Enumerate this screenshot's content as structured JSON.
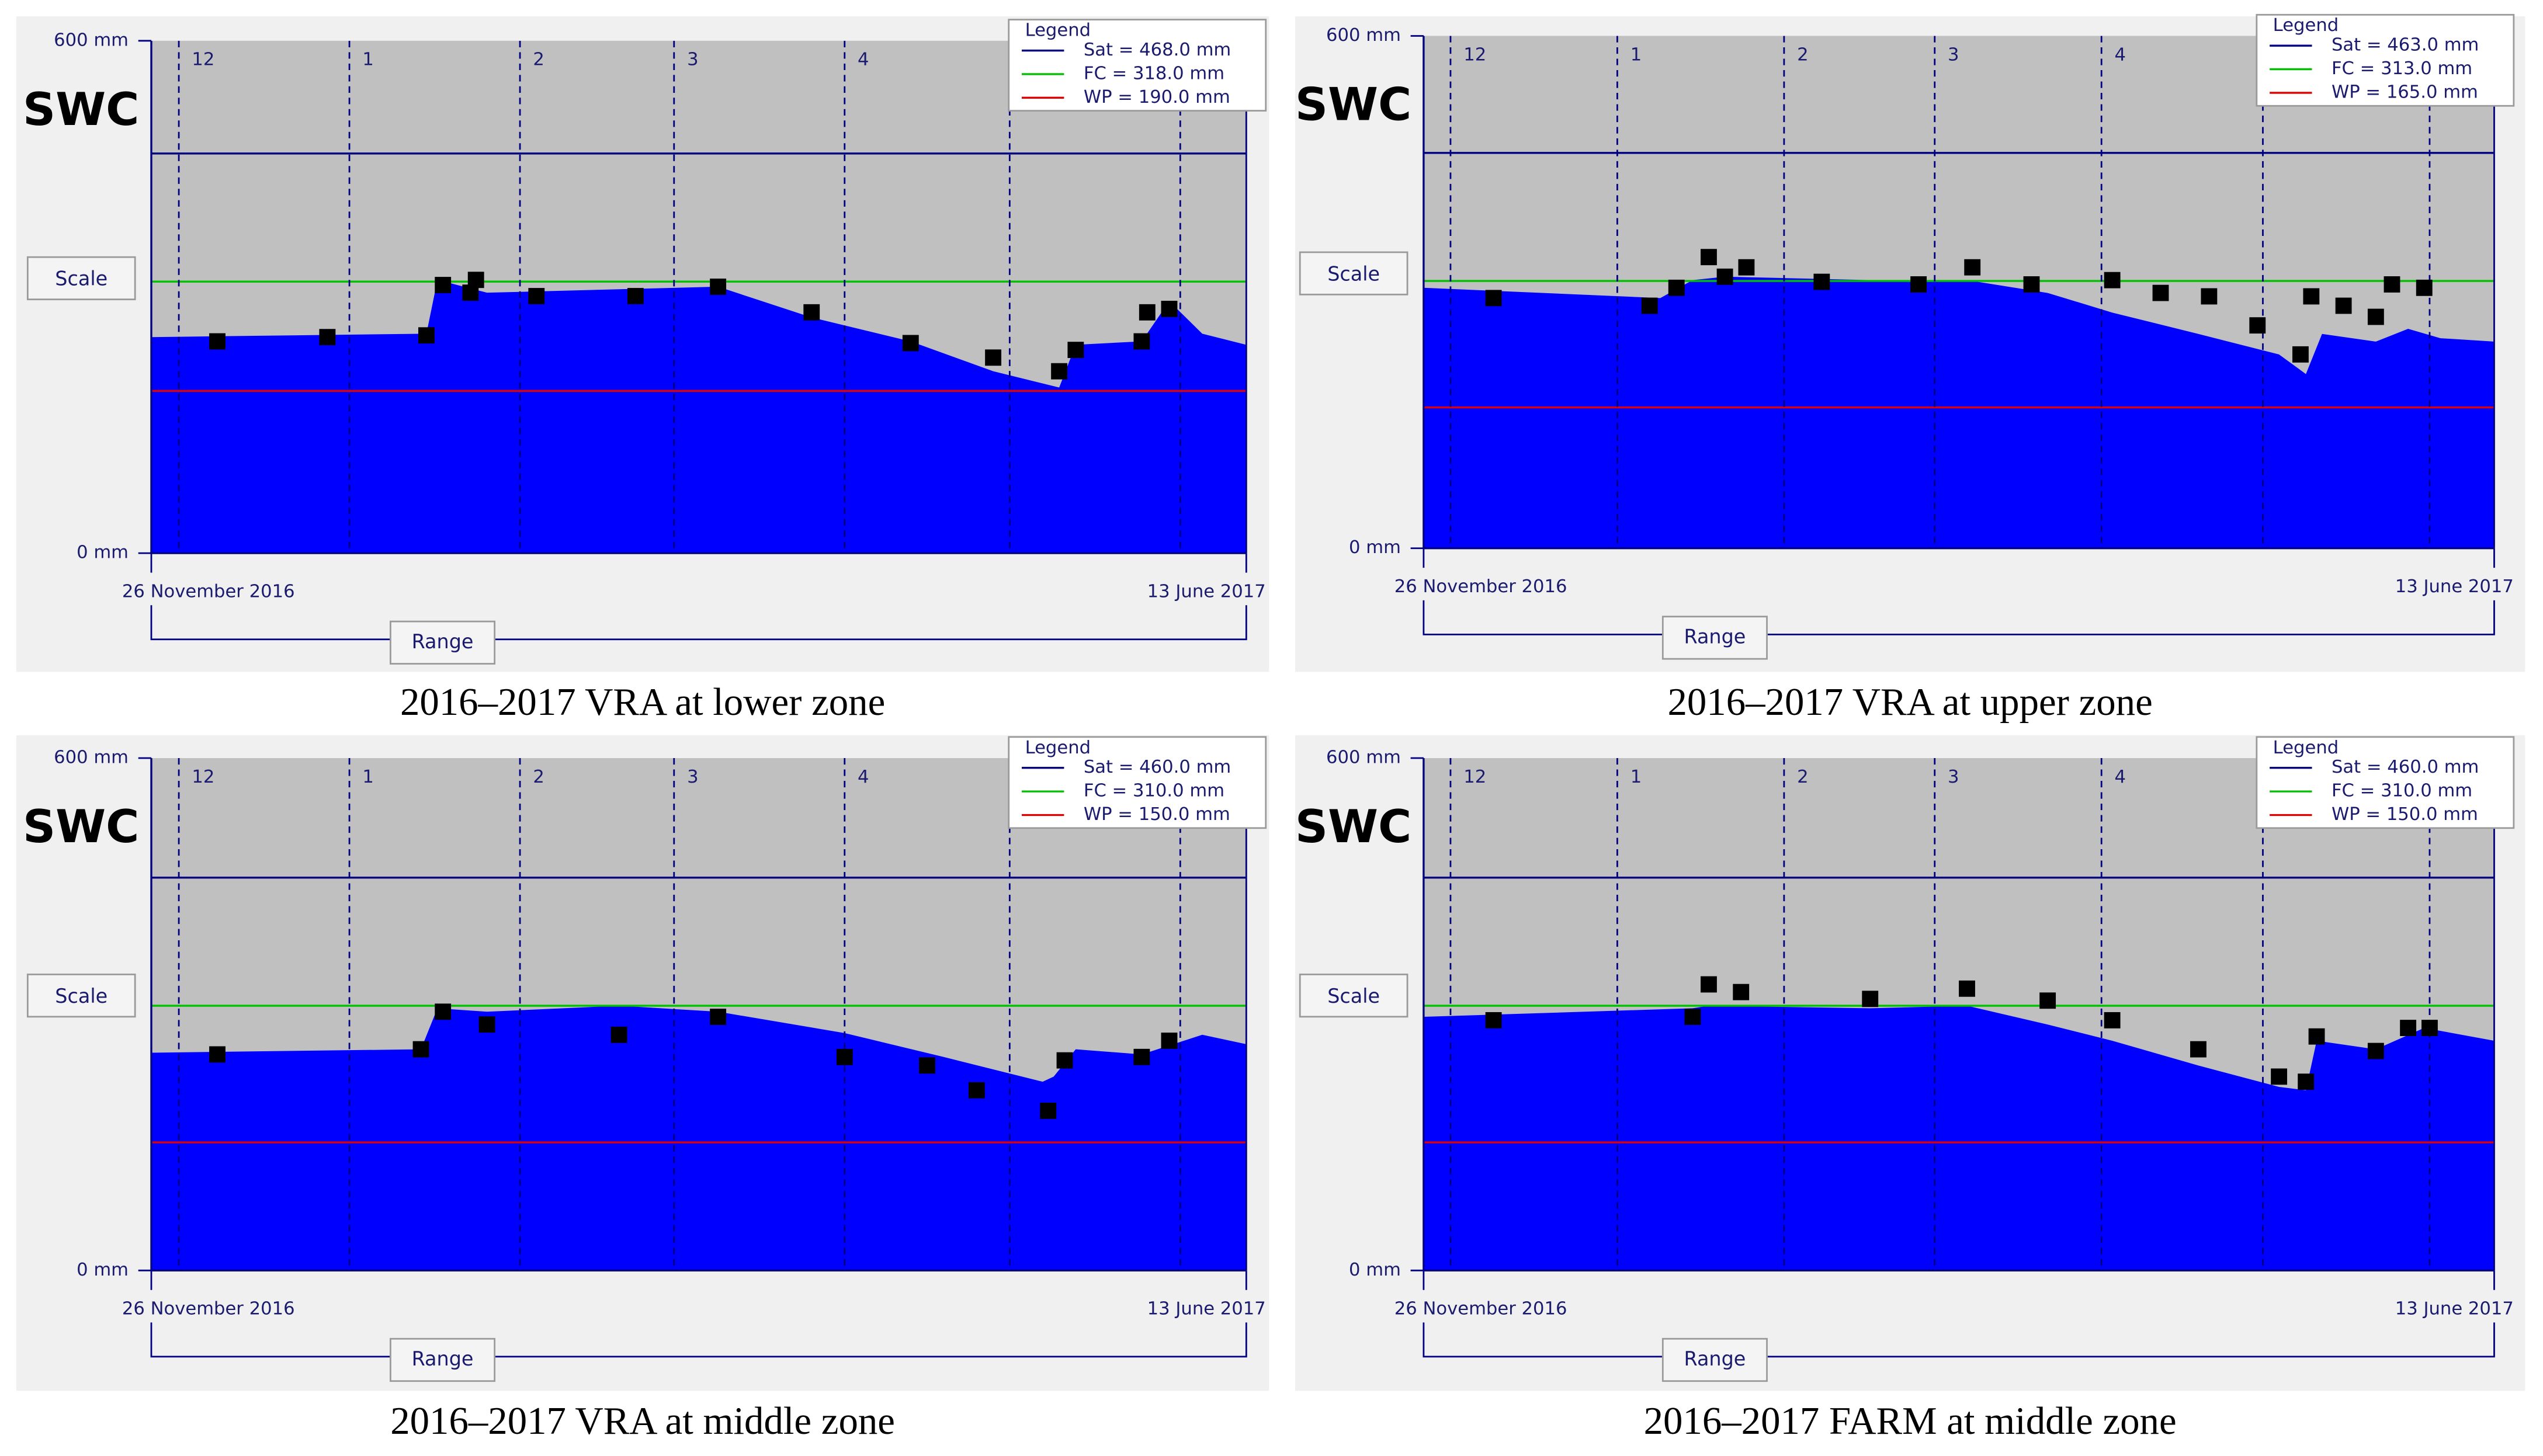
{
  "chart_data": [
    {
      "type": "area",
      "title": "SWC",
      "scale_button": "Scale",
      "range_button": "Range",
      "legend_title": "Legend",
      "caption": "2016–2017 VRA at lower zone",
      "ylim": [
        0,
        600
      ],
      "yticks": [
        {
          "value": 0,
          "label": "0 mm"
        },
        {
          "value": 600,
          "label": "600 mm"
        }
      ],
      "xlim": [
        {
          "value": 0,
          "label": "26 November 2016"
        },
        {
          "value": 199,
          "label": "13 June 2017"
        }
      ],
      "xticks": [
        {
          "value": 5,
          "label": "12"
        },
        {
          "value": 36,
          "label": "1"
        },
        {
          "value": 67,
          "label": "2"
        },
        {
          "value": 95,
          "label": "3"
        },
        {
          "value": 126,
          "label": "4"
        },
        {
          "value": 156,
          "label": null
        },
        {
          "value": 187,
          "label": null
        }
      ],
      "reference_lines": [
        {
          "name": "Sat = 468.0 mm",
          "value": 468,
          "color": "#000080"
        },
        {
          "name": "FC = 318.0 mm",
          "value": 318,
          "color": "#00c000"
        },
        {
          "name": "WP = 190.0 mm",
          "value": 190,
          "color": "#e00000"
        }
      ],
      "series": [
        {
          "style": "area",
          "color": "#0000ff",
          "x": [
            0,
            50,
            52,
            61,
            85,
            103,
            120,
            138,
            153,
            165,
            168,
            180,
            185,
            191,
            199
          ],
          "values": [
            253,
            257,
            320,
            305,
            309,
            312,
            276,
            248,
            213,
            194,
            244,
            248,
            295,
            257,
            244
          ]
        },
        {
          "style": "markers",
          "color": "#000000",
          "x": [
            12,
            32,
            50,
            53,
            58,
            59,
            70,
            88,
            103,
            120,
            138,
            153,
            165,
            168,
            180,
            181,
            185
          ],
          "values": [
            248,
            253,
            255,
            314,
            305,
            320,
            301,
            301,
            312,
            282,
            246,
            229,
            213,
            238,
            248,
            282,
            286
          ]
        }
      ]
    },
    {
      "type": "area",
      "title": "SWC",
      "scale_button": "Scale",
      "range_button": "Range",
      "legend_title": "Legend",
      "caption": "2016–2017 VRA at upper zone",
      "ylim": [
        0,
        600
      ],
      "yticks": [
        {
          "value": 0,
          "label": "0 mm"
        },
        {
          "value": 600,
          "label": "600 mm"
        }
      ],
      "xlim": [
        {
          "value": 0,
          "label": "26 November 2016"
        },
        {
          "value": 199,
          "label": "13 June 2017"
        }
      ],
      "xticks": [
        {
          "value": 5,
          "label": "12"
        },
        {
          "value": 36,
          "label": "1"
        },
        {
          "value": 67,
          "label": "2"
        },
        {
          "value": 95,
          "label": "3"
        },
        {
          "value": 126,
          "label": "4"
        },
        {
          "value": 156,
          "label": null
        },
        {
          "value": 187,
          "label": null
        }
      ],
      "reference_lines": [
        {
          "name": "Sat = 463.0 mm",
          "value": 463,
          "color": "#000080"
        },
        {
          "name": "FC = 313.0 mm",
          "value": 313,
          "color": "#00c000"
        },
        {
          "name": "WP = 165.0 mm",
          "value": 165,
          "color": "#e00000"
        }
      ],
      "series": [
        {
          "style": "area",
          "color": "#0000ff",
          "x": [
            0,
            44,
            50,
            56,
            83,
            101,
            116,
            128,
            144,
            159,
            164,
            167,
            177,
            183,
            189,
            199
          ],
          "values": [
            305,
            293,
            314,
            318,
            314,
            314,
            299,
            276,
            251,
            227,
            204,
            251,
            242,
            257,
            246,
            242
          ]
        },
        {
          "style": "markers",
          "color": "#000000",
          "x": [
            13,
            42,
            47,
            53,
            56,
            60,
            74,
            92,
            102,
            113,
            128,
            137,
            146,
            155,
            163,
            165,
            171,
            177,
            180,
            186
          ],
          "values": [
            293,
            284,
            305,
            341,
            318,
            329,
            312,
            309,
            329,
            309,
            314,
            299,
            295,
            261,
            227,
            295,
            284,
            271,
            309,
            305
          ]
        }
      ]
    },
    {
      "type": "area",
      "title": "SWC",
      "scale_button": "Scale",
      "range_button": "Range",
      "legend_title": "Legend",
      "caption": "2016–2017 VRA at middle zone",
      "ylim": [
        0,
        600
      ],
      "yticks": [
        {
          "value": 0,
          "label": "0 mm"
        },
        {
          "value": 600,
          "label": "600 mm"
        }
      ],
      "xlim": [
        {
          "value": 0,
          "label": "26 November 2016"
        },
        {
          "value": 199,
          "label": "13 June 2017"
        }
      ],
      "xticks": [
        {
          "value": 5,
          "label": "12"
        },
        {
          "value": 36,
          "label": "1"
        },
        {
          "value": 67,
          "label": "2"
        },
        {
          "value": 95,
          "label": "3"
        },
        {
          "value": 126,
          "label": "4"
        },
        {
          "value": 156,
          "label": null
        },
        {
          "value": 187,
          "label": null
        }
      ],
      "reference_lines": [
        {
          "name": "Sat = 460.0 mm",
          "value": 460,
          "color": "#000080"
        },
        {
          "name": "FC = 310.0 mm",
          "value": 310,
          "color": "#00c000"
        },
        {
          "name": "WP = 150.0 mm",
          "value": 150,
          "color": "#e00000"
        }
      ],
      "series": [
        {
          "style": "area",
          "color": "#0000ff",
          "x": [
            0,
            49,
            52,
            61,
            85,
            103,
            126,
            144,
            162,
            164,
            168,
            180,
            191,
            199
          ],
          "values": [
            255,
            259,
            307,
            303,
            310,
            303,
            278,
            250,
            221,
            227,
            259,
            253,
            276,
            265
          ]
        },
        {
          "style": "markers",
          "color": "#000000",
          "x": [
            12,
            49,
            53,
            61,
            85,
            103,
            126,
            141,
            150,
            163,
            166,
            180,
            185
          ],
          "values": [
            253,
            259,
            303,
            288,
            276,
            297,
            250,
            240,
            211,
            187,
            246,
            250,
            269
          ]
        }
      ]
    },
    {
      "type": "area",
      "title": "SWC",
      "scale_button": "Scale",
      "range_button": "Range",
      "legend_title": "Legend",
      "caption": "2016–2017 FARM at middle zone",
      "ylim": [
        0,
        600
      ],
      "yticks": [
        {
          "value": 0,
          "label": "0 mm"
        },
        {
          "value": 600,
          "label": "600 mm"
        }
      ],
      "xlim": [
        {
          "value": 0,
          "label": "26 November 2016"
        },
        {
          "value": 199,
          "label": "13 June 2017"
        }
      ],
      "xticks": [
        {
          "value": 5,
          "label": "12"
        },
        {
          "value": 36,
          "label": "1"
        },
        {
          "value": 67,
          "label": "2"
        },
        {
          "value": 95,
          "label": "3"
        },
        {
          "value": 126,
          "label": "4"
        },
        {
          "value": 156,
          "label": null
        },
        {
          "value": 187,
          "label": null
        }
      ],
      "reference_lines": [
        {
          "name": "Sat = 460.0 mm",
          "value": 460,
          "color": "#000080"
        },
        {
          "name": "FC = 310.0 mm",
          "value": 310,
          "color": "#00c000"
        },
        {
          "name": "WP = 150.0 mm",
          "value": 150,
          "color": "#e00000"
        }
      ],
      "series": [
        {
          "style": "area",
          "color": "#0000ff",
          "x": [
            0,
            50,
            53,
            83,
            101,
            116,
            128,
            144,
            159,
            164,
            166,
            177,
            186,
            199
          ],
          "values": [
            297,
            307,
            310,
            307,
            310,
            288,
            269,
            240,
            215,
            211,
            269,
            259,
            284,
            269
          ]
        },
        {
          "style": "markers",
          "color": "#000000",
          "x": [
            13,
            50,
            53,
            59,
            83,
            101,
            116,
            128,
            144,
            159,
            164,
            166,
            177,
            183,
            187
          ],
          "values": [
            293,
            297,
            335,
            326,
            318,
            330,
            316,
            293,
            259,
            227,
            221,
            274,
            257,
            284,
            284
          ]
        }
      ]
    }
  ]
}
